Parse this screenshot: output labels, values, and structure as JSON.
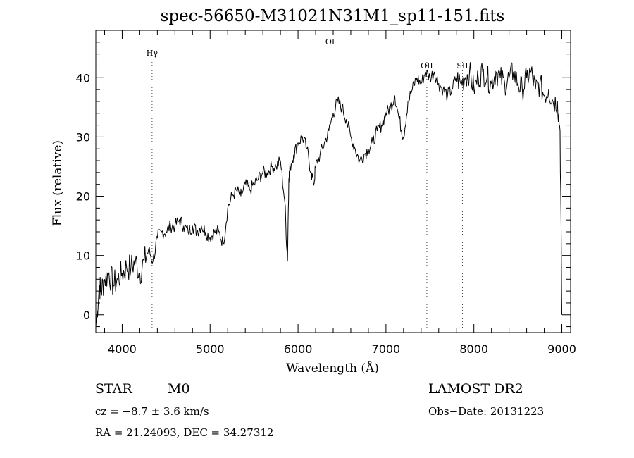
{
  "chart_data": {
    "type": "line",
    "title": "spec-56650-M31021N31M1_sp11-151.fits",
    "xlabel": "Wavelength (Å)",
    "ylabel": "Flux (relative)",
    "xlim": [
      3700,
      9100
    ],
    "ylim": [
      -3,
      48
    ],
    "x_ticks": [
      4000,
      5000,
      6000,
      7000,
      8000,
      9000
    ],
    "y_ticks": [
      0,
      10,
      20,
      30,
      40
    ],
    "grid": false,
    "series": [
      {
        "x": [
          3700,
          3740,
          3760,
          3800,
          3850,
          3900,
          3950,
          4000,
          4050,
          4100,
          4150,
          4200,
          4250,
          4300,
          4350,
          4400,
          4450,
          4500,
          4550,
          4600,
          4650,
          4700,
          4750,
          4800,
          4850,
          4900,
          4950,
          5000,
          5050,
          5100,
          5150,
          5200,
          5250,
          5300,
          5350,
          5400,
          5450,
          5500,
          5550,
          5600,
          5650,
          5700,
          5750,
          5800,
          5850,
          5880,
          5895,
          5910,
          5950,
          6000,
          6050,
          6100,
          6150,
          6180,
          6200,
          6250,
          6300,
          6350,
          6400,
          6450,
          6500,
          6550,
          6600,
          6650,
          6700,
          6750,
          6800,
          6850,
          6900,
          6950,
          7000,
          7050,
          7100,
          7150,
          7200,
          7250,
          7300,
          7350,
          7400,
          7450,
          7500,
          7550,
          7600,
          7650,
          7700,
          7750,
          7800,
          7850,
          7900,
          7950,
          8000,
          8050,
          8100,
          8150,
          8200,
          8250,
          8300,
          8350,
          8400,
          8450,
          8500,
          8550,
          8600,
          8650,
          8700,
          8750,
          8800,
          8850,
          8900,
          8950,
          8980,
          9000
        ],
        "y": [
          -2,
          5,
          4,
          6,
          7,
          5,
          6,
          7,
          8,
          8,
          9,
          7,
          9,
          11,
          9,
          13,
          14,
          14,
          15,
          15,
          16,
          15,
          14,
          15,
          14,
          15,
          14,
          13,
          14,
          14,
          12,
          18,
          20,
          21,
          20,
          22,
          21,
          22,
          23,
          24,
          24,
          25,
          25,
          26,
          19,
          9,
          23,
          25,
          27,
          29,
          30,
          28,
          24,
          22,
          25,
          27,
          29,
          31,
          34,
          36,
          35,
          33,
          30,
          28,
          26,
          27,
          28,
          29,
          31,
          32,
          34,
          35,
          37,
          33,
          30,
          36,
          38,
          40,
          39,
          41,
          40,
          41,
          39,
          38,
          37,
          38,
          40,
          39,
          40,
          41,
          38,
          40,
          41,
          40,
          39,
          41,
          40,
          39,
          40,
          41,
          39,
          38,
          40,
          41,
          38,
          39,
          37,
          38,
          36,
          36,
          31,
          0
        ]
      }
    ],
    "line_markers": [
      {
        "label": "Hγ",
        "x": 4340
      },
      {
        "label": "OI",
        "x": 6364
      },
      {
        "label": "OII",
        "x": 7465
      },
      {
        "label": "SII",
        "x": 7870
      }
    ]
  },
  "info": {
    "object_class": "STAR",
    "subclass": "M0",
    "survey": "LAMOST DR2",
    "cz": "cz = −8.7 ± 3.6 km/s",
    "obs_date": "Obs−Date: 20131223",
    "coords": "RA =  21.24093, DEC =  34.27312"
  }
}
